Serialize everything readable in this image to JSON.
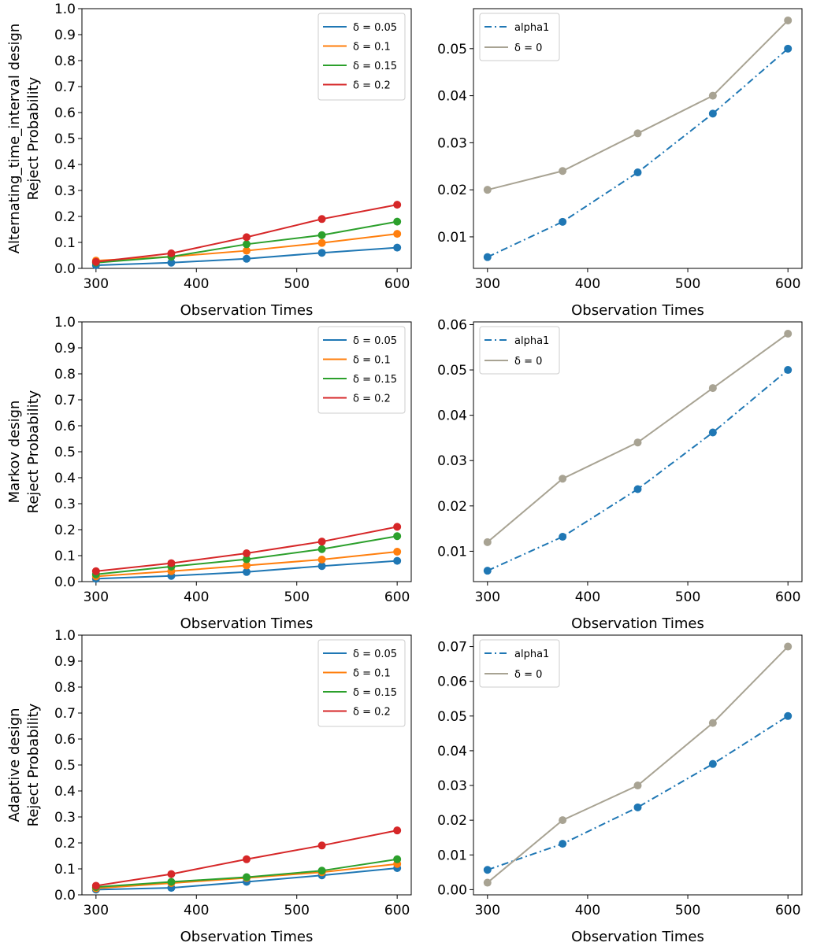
{
  "colors": {
    "d005": "#1f77b4",
    "d01": "#ff7f0e",
    "d015": "#2ca02c",
    "d02": "#d62728",
    "alpha1": "#1f77b4",
    "delta0": "#a8a393"
  },
  "chart_data": [
    {
      "id": "alt-left",
      "type": "line",
      "xlabel": "Observation Times",
      "ylabel_lines": [
        "Alternating_time_interval design",
        "Reject Probability"
      ],
      "x": [
        300,
        375,
        450,
        525,
        600
      ],
      "xticks": [
        300,
        400,
        500,
        600
      ],
      "xlim": [
        286,
        614
      ],
      "ylim": [
        0,
        1
      ],
      "yticks": [
        0,
        0.1,
        0.2,
        0.3,
        0.4,
        0.5,
        0.6,
        0.7,
        0.8,
        0.9,
        1.0
      ],
      "ytick_labels": [
        "0.0",
        "0.1",
        "0.2",
        "0.3",
        "0.4",
        "0.5",
        "0.6",
        "0.7",
        "0.8",
        "0.9",
        "1.0"
      ],
      "legend": "top-right",
      "series": [
        {
          "name": "δ = 0.05",
          "color_key": "d005",
          "style": "solid",
          "values": [
            0.012,
            0.022,
            0.037,
            0.06,
            0.08
          ]
        },
        {
          "name": "δ = 0.1",
          "color_key": "d01",
          "style": "solid",
          "values": [
            0.03,
            0.045,
            0.068,
            0.098,
            0.133
          ]
        },
        {
          "name": "δ = 0.15",
          "color_key": "d015",
          "style": "solid",
          "values": [
            0.022,
            0.045,
            0.093,
            0.128,
            0.18
          ]
        },
        {
          "name": "δ = 0.2",
          "color_key": "d02",
          "style": "solid",
          "values": [
            0.025,
            0.058,
            0.12,
            0.19,
            0.245
          ]
        }
      ]
    },
    {
      "id": "alt-right",
      "type": "line",
      "xlabel": "Observation Times",
      "x": [
        300,
        375,
        450,
        525,
        600
      ],
      "xticks": [
        300,
        400,
        500,
        600
      ],
      "xlim": [
        286,
        614
      ],
      "ylim": [
        0.0033,
        0.0585
      ],
      "yticks": [
        0.01,
        0.02,
        0.03,
        0.04,
        0.05
      ],
      "ytick_labels": [
        "0.01",
        "0.02",
        "0.03",
        "0.04",
        "0.05"
      ],
      "legend": "top-left",
      "series": [
        {
          "name": "alpha1",
          "color_key": "alpha1",
          "style": "dashdot",
          "values": [
            0.0057,
            0.0132,
            0.0237,
            0.0362,
            0.05
          ]
        },
        {
          "name": "δ = 0",
          "color_key": "delta0",
          "style": "solid",
          "values": [
            0.02,
            0.024,
            0.032,
            0.04,
            0.056
          ]
        }
      ]
    },
    {
      "id": "markov-left",
      "type": "line",
      "xlabel": "Observation Times",
      "ylabel_lines": [
        "Markov design",
        "Reject Probability"
      ],
      "x": [
        300,
        375,
        450,
        525,
        600
      ],
      "xticks": [
        300,
        400,
        500,
        600
      ],
      "xlim": [
        286,
        614
      ],
      "ylim": [
        0,
        1
      ],
      "yticks": [
        0,
        0.1,
        0.2,
        0.3,
        0.4,
        0.5,
        0.6,
        0.7,
        0.8,
        0.9,
        1.0
      ],
      "ytick_labels": [
        "0.0",
        "0.1",
        "0.2",
        "0.3",
        "0.4",
        "0.5",
        "0.6",
        "0.7",
        "0.8",
        "0.9",
        "1.0"
      ],
      "legend": "top-right",
      "series": [
        {
          "name": "δ = 0.05",
          "color_key": "d005",
          "style": "solid",
          "values": [
            0.011,
            0.022,
            0.037,
            0.06,
            0.08
          ]
        },
        {
          "name": "δ = 0.1",
          "color_key": "d01",
          "style": "solid",
          "values": [
            0.02,
            0.04,
            0.062,
            0.085,
            0.115
          ]
        },
        {
          "name": "δ = 0.15",
          "color_key": "d015",
          "style": "solid",
          "values": [
            0.028,
            0.058,
            0.086,
            0.125,
            0.175
          ]
        },
        {
          "name": "δ = 0.2",
          "color_key": "d02",
          "style": "solid",
          "values": [
            0.04,
            0.071,
            0.109,
            0.154,
            0.211
          ]
        }
      ]
    },
    {
      "id": "markov-right",
      "type": "line",
      "xlabel": "Observation Times",
      "x": [
        300,
        375,
        450,
        525,
        600
      ],
      "xticks": [
        300,
        400,
        500,
        600
      ],
      "xlim": [
        286,
        614
      ],
      "ylim": [
        0.0033,
        0.0606
      ],
      "yticks": [
        0.01,
        0.02,
        0.03,
        0.04,
        0.05,
        0.06
      ],
      "ytick_labels": [
        "0.01",
        "0.02",
        "0.03",
        "0.04",
        "0.05",
        "0.06"
      ],
      "legend": "top-left",
      "series": [
        {
          "name": "alpha1",
          "color_key": "alpha1",
          "style": "dashdot",
          "values": [
            0.0057,
            0.0132,
            0.0237,
            0.0362,
            0.05
          ]
        },
        {
          "name": "δ = 0",
          "color_key": "delta0",
          "style": "solid",
          "values": [
            0.012,
            0.026,
            0.034,
            0.046,
            0.058
          ]
        }
      ]
    },
    {
      "id": "adaptive-left",
      "type": "line",
      "xlabel": "Observation Times",
      "ylabel_lines": [
        "Adaptive design",
        "Reject Probability"
      ],
      "x": [
        300,
        375,
        450,
        525,
        600
      ],
      "xticks": [
        300,
        400,
        500,
        600
      ],
      "xlim": [
        286,
        614
      ],
      "ylim": [
        0,
        1
      ],
      "yticks": [
        0,
        0.1,
        0.2,
        0.3,
        0.4,
        0.5,
        0.6,
        0.7,
        0.8,
        0.9,
        1.0
      ],
      "ytick_labels": [
        "0.0",
        "0.1",
        "0.2",
        "0.3",
        "0.4",
        "0.5",
        "0.6",
        "0.7",
        "0.8",
        "0.9",
        "1.0"
      ],
      "legend": "top-right",
      "series": [
        {
          "name": "δ = 0.05",
          "color_key": "d005",
          "style": "solid",
          "values": [
            0.02,
            0.027,
            0.05,
            0.075,
            0.103
          ]
        },
        {
          "name": "δ = 0.1",
          "color_key": "d01",
          "style": "solid",
          "values": [
            0.025,
            0.045,
            0.065,
            0.087,
            0.119
          ]
        },
        {
          "name": "δ = 0.15",
          "color_key": "d015",
          "style": "solid",
          "values": [
            0.03,
            0.05,
            0.068,
            0.093,
            0.137
          ]
        },
        {
          "name": "δ = 0.2",
          "color_key": "d02",
          "style": "solid",
          "values": [
            0.035,
            0.08,
            0.137,
            0.19,
            0.248
          ]
        }
      ]
    },
    {
      "id": "adaptive-right",
      "type": "line",
      "xlabel": "Observation Times",
      "x": [
        300,
        375,
        450,
        525,
        600
      ],
      "xticks": [
        300,
        400,
        500,
        600
      ],
      "xlim": [
        286,
        614
      ],
      "ylim": [
        -0.0015,
        0.0733
      ],
      "yticks": [
        0.0,
        0.01,
        0.02,
        0.03,
        0.04,
        0.05,
        0.06,
        0.07
      ],
      "ytick_labels": [
        "0.00",
        "0.01",
        "0.02",
        "0.03",
        "0.04",
        "0.05",
        "0.06",
        "0.07"
      ],
      "legend": "top-left",
      "series": [
        {
          "name": "alpha1",
          "color_key": "alpha1",
          "style": "dashdot",
          "values": [
            0.0057,
            0.0132,
            0.0237,
            0.0362,
            0.05
          ]
        },
        {
          "name": "δ = 0",
          "color_key": "delta0",
          "style": "solid",
          "values": [
            0.002,
            0.02,
            0.03,
            0.048,
            0.07
          ]
        }
      ]
    }
  ]
}
